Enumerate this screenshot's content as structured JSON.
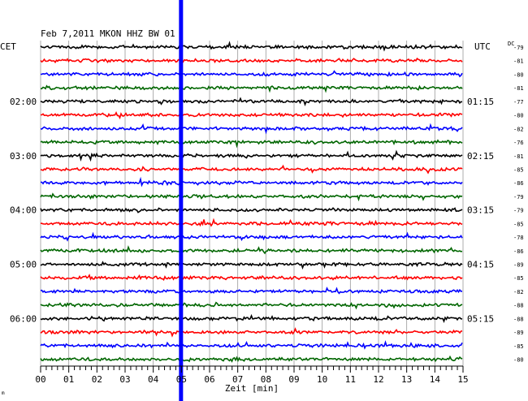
{
  "chart_data": {
    "type": "line",
    "title": "Feb 7,2011   MKON HHZ BW 01",
    "xlabel": "Zeit [min]",
    "xlim": [
      0,
      15
    ],
    "x_ticks": [
      "00",
      "01",
      "02",
      "03",
      "04",
      "05",
      "06",
      "07",
      "08",
      "09",
      "10",
      "11",
      "12",
      "13",
      "14",
      "15"
    ],
    "left_timezone": "CET",
    "right_timezone": "UTC",
    "dc_header": "DC",
    "left_hour_labels": [
      "02:00",
      "03:00",
      "04:00",
      "05:00",
      "06:00"
    ],
    "right_hour_labels": [
      "01:15",
      "02:15",
      "03:15",
      "04:15",
      "05:15"
    ],
    "traces_per_hour": 4,
    "first_hour_trace_index": 4,
    "event_minute": 5,
    "trace_colors": [
      "#000000",
      "#ff0000",
      "#0000ff",
      "#006600"
    ],
    "event_color": "#0000ff",
    "dc_offsets": [
      "-79",
      "-81",
      "-80",
      "-81",
      "-77",
      "-80",
      "-82",
      "-76",
      "-81",
      "-85",
      "-86",
      "-79",
      "-79",
      "-85",
      "-78",
      "-86",
      "-89",
      "-85",
      "-82",
      "-88",
      "-88",
      "-89",
      "-85",
      "-80"
    ],
    "footer_mark": "m"
  }
}
